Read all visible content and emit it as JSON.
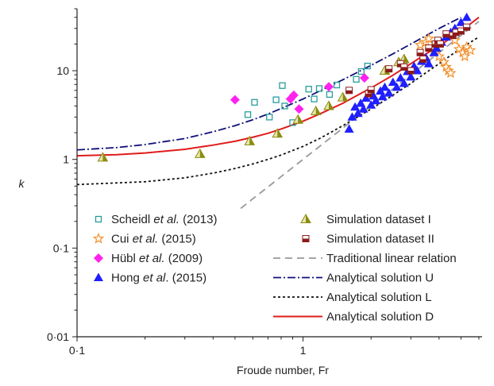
{
  "chart_data": {
    "type": "scatter",
    "xlabel": "Froude number, Fr",
    "ylabel": "k",
    "xscale": "log",
    "yscale": "log",
    "xlim": [
      0.1,
      6.2
    ],
    "ylim": [
      0.01,
      50
    ],
    "xticks": [
      {
        "value": 0.1,
        "label": "0·1"
      },
      {
        "value": 1,
        "label": "1"
      }
    ],
    "yticks": [
      {
        "value": 0.01,
        "label": "0·01"
      },
      {
        "value": 0.1,
        "label": "0·1"
      },
      {
        "value": 1,
        "label": "1"
      },
      {
        "value": 10,
        "label": "10"
      }
    ],
    "grid": false,
    "legend_position": "bottom",
    "series": [
      {
        "name": "Scheidl et al. (2013)",
        "legend": {
          "pre": "Scheidl ",
          "italic": "et al.",
          "post": " (2013)"
        },
        "kind": "points",
        "marker": "open-square",
        "color": "#2a9d9d",
        "points": [
          [
            0.57,
            3.2
          ],
          [
            0.61,
            4.4
          ],
          [
            0.71,
            3.0
          ],
          [
            0.76,
            4.7
          ],
          [
            0.81,
            6.8
          ],
          [
            0.83,
            4.0
          ],
          [
            0.9,
            2.6
          ],
          [
            1.06,
            6.2
          ],
          [
            1.12,
            4.8
          ],
          [
            1.18,
            6.3
          ],
          [
            1.31,
            5.4
          ],
          [
            1.41,
            6.9
          ],
          [
            1.72,
            8.0
          ],
          [
            1.81,
            9.8
          ],
          [
            1.93,
            11.3
          ]
        ]
      },
      {
        "name": "Cui et al. (2015)",
        "legend": {
          "pre": "Cui ",
          "italic": "et al.",
          "post": " (2015)"
        },
        "kind": "points",
        "marker": "open-star",
        "color": "#f08a24",
        "points": [
          [
            3.3,
            19.5
          ],
          [
            3.5,
            21.0
          ],
          [
            3.6,
            23.0
          ],
          [
            3.8,
            16.0
          ],
          [
            4.0,
            14.5
          ],
          [
            4.2,
            12.5
          ],
          [
            4.3,
            11.0
          ],
          [
            4.4,
            10.0
          ],
          [
            4.5,
            9.4
          ],
          [
            4.7,
            22.0
          ],
          [
            4.9,
            17.5
          ],
          [
            5.1,
            16.0
          ],
          [
            5.3,
            18.5
          ],
          [
            5.5,
            17.0
          ],
          [
            5.2,
            14.5
          ]
        ]
      },
      {
        "name": "Hübl et al. (2009)",
        "legend": {
          "pre": "Hübl ",
          "italic": "et al.",
          "post": " (2009)"
        },
        "kind": "points",
        "marker": "filled-diamond",
        "color": "#ff22ee",
        "points": [
          [
            0.5,
            4.7
          ],
          [
            0.88,
            4.8
          ],
          [
            0.91,
            5.3
          ],
          [
            0.96,
            3.7
          ],
          [
            1.3,
            6.6
          ],
          [
            1.87,
            8.3
          ]
        ]
      },
      {
        "name": "Hong et al. (2015)",
        "legend": {
          "pre": "Hong ",
          "italic": "et al",
          "post": ". (2015)"
        },
        "kind": "points",
        "marker": "filled-triangle",
        "color": "#1f1fff",
        "points": [
          [
            1.6,
            2.2
          ],
          [
            1.65,
            3.0
          ],
          [
            1.7,
            3.9
          ],
          [
            1.75,
            3.3
          ],
          [
            1.8,
            4.3
          ],
          [
            1.85,
            3.7
          ],
          [
            1.9,
            4.9
          ],
          [
            2.0,
            4.1
          ],
          [
            2.05,
            5.2
          ],
          [
            2.1,
            4.6
          ],
          [
            2.2,
            5.9
          ],
          [
            2.25,
            5.1
          ],
          [
            2.3,
            6.5
          ],
          [
            2.4,
            5.6
          ],
          [
            2.5,
            7.4
          ],
          [
            2.6,
            6.5
          ],
          [
            2.7,
            8.3
          ],
          [
            2.8,
            7.2
          ],
          [
            2.9,
            9.8
          ],
          [
            3.0,
            8.5
          ],
          [
            3.1,
            11.2
          ],
          [
            3.2,
            10.0
          ],
          [
            3.35,
            12.8
          ],
          [
            3.5,
            14.0
          ],
          [
            3.6,
            12.0
          ],
          [
            3.8,
            16.0
          ],
          [
            3.9,
            18.0
          ],
          [
            4.1,
            21.0
          ],
          [
            4.3,
            24.0
          ],
          [
            4.5,
            27.0
          ],
          [
            4.7,
            30.0
          ],
          [
            5.0,
            35.0
          ],
          [
            5.3,
            40.0
          ]
        ]
      },
      {
        "name": "Simulation dataset I",
        "kind": "points",
        "marker": "shaded-triangle",
        "color": "#8b8b10",
        "points": [
          [
            0.13,
            1.05
          ],
          [
            0.35,
            1.15
          ],
          [
            0.58,
            1.6
          ],
          [
            0.77,
            1.95
          ],
          [
            0.95,
            2.8
          ],
          [
            1.14,
            3.5
          ],
          [
            1.3,
            4.0
          ],
          [
            1.5,
            5.0
          ],
          [
            2.3,
            10.0
          ],
          [
            2.65,
            12.5
          ],
          [
            2.8,
            13.5
          ]
        ]
      },
      {
        "name": "Simulation dataset II",
        "kind": "points",
        "marker": "split-square",
        "color": "#8b1a1a",
        "points": [
          [
            1.6,
            6.0
          ],
          [
            1.95,
            5.5
          ],
          [
            2.0,
            6.1
          ],
          [
            2.4,
            10.5
          ],
          [
            2.7,
            12.0
          ],
          [
            2.8,
            11.0
          ],
          [
            3.0,
            10.0
          ],
          [
            3.3,
            16.0
          ],
          [
            3.4,
            13.5
          ],
          [
            3.6,
            18.0
          ],
          [
            3.85,
            20.0
          ],
          [
            3.95,
            22.0
          ],
          [
            4.05,
            20.0
          ],
          [
            4.3,
            26.0
          ],
          [
            4.6,
            25.0
          ],
          [
            4.75,
            27.0
          ],
          [
            5.0,
            28.0
          ],
          [
            5.3,
            31.0
          ]
        ]
      },
      {
        "name": "Traditional linear relation",
        "kind": "line",
        "dash": "9,6",
        "color": "#999999",
        "width": 1.8,
        "points": [
          [
            0.53,
            0.28
          ],
          [
            0.6,
            0.36
          ],
          [
            0.7,
            0.49
          ],
          [
            0.8,
            0.64
          ],
          [
            0.9,
            0.81
          ],
          [
            1.0,
            1.0
          ],
          [
            1.2,
            1.44
          ],
          [
            1.5,
            2.25
          ],
          [
            2.0,
            4.0
          ],
          [
            2.5,
            6.25
          ],
          [
            3.0,
            9.0
          ],
          [
            4.0,
            16.0
          ],
          [
            5.0,
            25.0
          ],
          [
            6.0,
            36.0
          ]
        ]
      },
      {
        "name": "Analytical solution U",
        "kind": "line",
        "dash": "10,3,2,3",
        "color": "#10107a",
        "width": 1.8,
        "points": [
          [
            0.1,
            1.28
          ],
          [
            0.15,
            1.36
          ],
          [
            0.2,
            1.47
          ],
          [
            0.3,
            1.72
          ],
          [
            0.4,
            2.05
          ],
          [
            0.5,
            2.4
          ],
          [
            0.6,
            2.8
          ],
          [
            0.7,
            3.25
          ],
          [
            0.8,
            3.75
          ],
          [
            1.0,
            4.8
          ],
          [
            1.2,
            6.0
          ],
          [
            1.5,
            7.9
          ],
          [
            2.0,
            11.5
          ],
          [
            2.5,
            15.5
          ],
          [
            3.0,
            20.0
          ],
          [
            4.0,
            30.0
          ],
          [
            5.0,
            40.0
          ]
        ]
      },
      {
        "name": "Analytical solution L",
        "kind": "line",
        "dash": "3,3",
        "color": "#111111",
        "width": 1.8,
        "points": [
          [
            0.1,
            0.52
          ],
          [
            0.2,
            0.56
          ],
          [
            0.3,
            0.62
          ],
          [
            0.4,
            0.7
          ],
          [
            0.5,
            0.79
          ],
          [
            0.6,
            0.89
          ],
          [
            0.7,
            1.0
          ],
          [
            0.8,
            1.12
          ],
          [
            1.0,
            1.4
          ],
          [
            1.2,
            1.75
          ],
          [
            1.5,
            2.4
          ],
          [
            2.0,
            3.7
          ],
          [
            2.5,
            5.3
          ],
          [
            3.0,
            7.2
          ],
          [
            3.5,
            9.5
          ],
          [
            4.0,
            12.0
          ],
          [
            5.0,
            18.0
          ],
          [
            6.0,
            24.0
          ]
        ]
      },
      {
        "name": "Analytical solution D",
        "kind": "line",
        "dash": "",
        "color": "#e01b1b",
        "width": 2.0,
        "points": [
          [
            0.1,
            1.1
          ],
          [
            0.15,
            1.13
          ],
          [
            0.2,
            1.18
          ],
          [
            0.3,
            1.3
          ],
          [
            0.4,
            1.45
          ],
          [
            0.5,
            1.6
          ],
          [
            0.6,
            1.78
          ],
          [
            0.7,
            1.97
          ],
          [
            0.8,
            2.2
          ],
          [
            1.0,
            2.7
          ],
          [
            1.2,
            3.3
          ],
          [
            1.5,
            4.3
          ],
          [
            2.0,
            6.4
          ],
          [
            2.5,
            8.9
          ],
          [
            3.0,
            12.0
          ],
          [
            3.5,
            15.5
          ],
          [
            4.0,
            19.0
          ],
          [
            5.0,
            28.0
          ],
          [
            6.0,
            40.0
          ]
        ]
      }
    ]
  }
}
